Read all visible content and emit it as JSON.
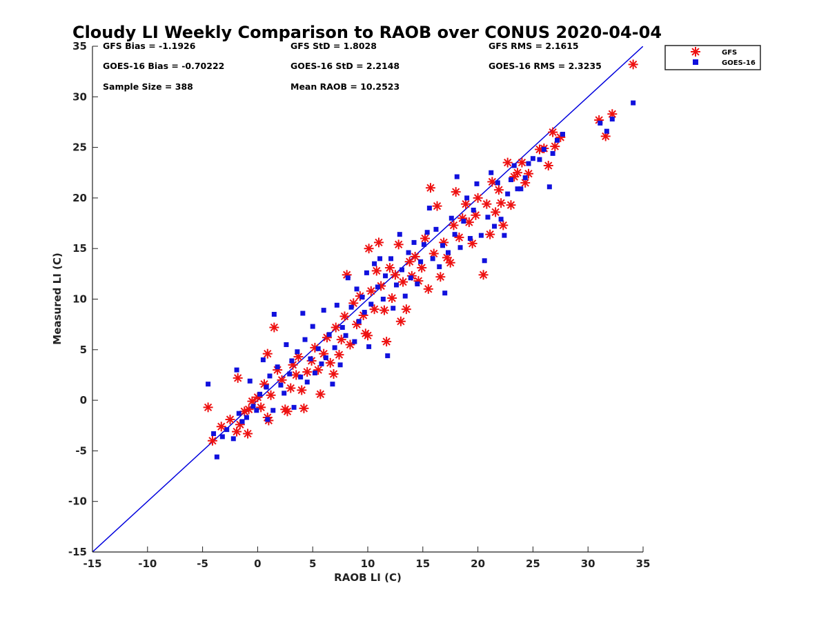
{
  "chart_data": {
    "type": "scatter",
    "title": "Cloudy LI Weekly Comparison to RAOB over CONUS 2020-04-04",
    "xlabel": "RAOB LI (C)",
    "ylabel": "Measured LI (C)",
    "xlim": [
      -15,
      35
    ],
    "ylim": [
      -15,
      35
    ],
    "xticks": [
      -15,
      -10,
      -5,
      0,
      5,
      10,
      15,
      20,
      25,
      30,
      35
    ],
    "yticks": [
      -15,
      -10,
      -5,
      0,
      5,
      10,
      15,
      20,
      25,
      30,
      35
    ],
    "xtick_labels": [
      "-15",
      "-10",
      "-5",
      "0",
      "5",
      "10",
      "15",
      "20",
      "25",
      "30",
      "35"
    ],
    "ytick_labels": [
      "-15",
      "-10",
      "-5",
      "0",
      "5",
      "10",
      "15",
      "20",
      "25",
      "30",
      "35"
    ],
    "grid": false,
    "legend_position": "outside-top-right",
    "reference_line": {
      "x": [
        -15,
        35
      ],
      "y": [
        -15,
        35
      ],
      "color": "#0000dd"
    },
    "annotations": [
      "GFS Bias = -1.1926",
      "GFS StD = 1.8028",
      "GFS RMS = 2.1615",
      "GOES-16 Bias = -0.70222",
      "GOES-16 StD = 2.2148",
      "GOES-16 RMS = 2.3235",
      "Sample Size = 388",
      "Mean RAOB = 10.2523"
    ],
    "series": [
      {
        "name": "GFS",
        "marker": "asterisk",
        "color": "#ee1111",
        "points": [
          [
            -4.5,
            -0.7
          ],
          [
            -4.1,
            -4.0
          ],
          [
            -3.3,
            -2.6
          ],
          [
            -2.5,
            -1.9
          ],
          [
            -1.9,
            -3.1
          ],
          [
            -1.8,
            2.2
          ],
          [
            -1.6,
            -2.4
          ],
          [
            -1.2,
            -1.1
          ],
          [
            -0.9,
            -3.3
          ],
          [
            -0.8,
            -0.9
          ],
          [
            -0.5,
            -0.1
          ],
          [
            0.0,
            0.3
          ],
          [
            0.3,
            -0.7
          ],
          [
            0.6,
            1.6
          ],
          [
            0.9,
            -1.7
          ],
          [
            0.9,
            4.6
          ],
          [
            1.0,
            -2.0
          ],
          [
            1.2,
            0.5
          ],
          [
            1.5,
            7.2
          ],
          [
            1.8,
            3.0
          ],
          [
            2.2,
            2.0
          ],
          [
            2.5,
            -0.9
          ],
          [
            2.7,
            -1.1
          ],
          [
            3.0,
            1.2
          ],
          [
            3.2,
            3.5
          ],
          [
            3.5,
            2.5
          ],
          [
            3.7,
            4.3
          ],
          [
            4.0,
            1.0
          ],
          [
            4.2,
            -0.8
          ],
          [
            4.5,
            2.8
          ],
          [
            4.9,
            3.9
          ],
          [
            5.2,
            5.2
          ],
          [
            5.5,
            3.0
          ],
          [
            5.7,
            0.6
          ],
          [
            6.0,
            4.6
          ],
          [
            6.3,
            6.2
          ],
          [
            6.6,
            3.7
          ],
          [
            6.9,
            2.6
          ],
          [
            7.1,
            7.2
          ],
          [
            7.4,
            4.5
          ],
          [
            7.6,
            6.0
          ],
          [
            7.9,
            8.3
          ],
          [
            8.1,
            12.4
          ],
          [
            8.4,
            5.5
          ],
          [
            8.7,
            9.6
          ],
          [
            9.0,
            7.5
          ],
          [
            9.3,
            10.3
          ],
          [
            9.6,
            8.4
          ],
          [
            9.8,
            6.6
          ],
          [
            10.0,
            6.4
          ],
          [
            10.1,
            15.0
          ],
          [
            10.3,
            10.8
          ],
          [
            10.6,
            9.0
          ],
          [
            10.8,
            12.8
          ],
          [
            11.0,
            15.6
          ],
          [
            11.2,
            11.3
          ],
          [
            11.5,
            8.9
          ],
          [
            11.7,
            5.8
          ],
          [
            12.0,
            13.1
          ],
          [
            12.2,
            10.1
          ],
          [
            12.5,
            12.4
          ],
          [
            12.8,
            15.4
          ],
          [
            13.0,
            7.8
          ],
          [
            13.2,
            11.7
          ],
          [
            13.5,
            9.0
          ],
          [
            13.8,
            13.7
          ],
          [
            14.0,
            12.3
          ],
          [
            14.3,
            14.2
          ],
          [
            14.6,
            11.8
          ],
          [
            14.9,
            13.1
          ],
          [
            15.2,
            16.0
          ],
          [
            15.5,
            11.0
          ],
          [
            15.7,
            21.0
          ],
          [
            16.0,
            14.5
          ],
          [
            16.3,
            19.2
          ],
          [
            16.6,
            12.2
          ],
          [
            16.9,
            15.6
          ],
          [
            17.2,
            14.1
          ],
          [
            17.5,
            13.6
          ],
          [
            17.8,
            17.3
          ],
          [
            18.0,
            20.6
          ],
          [
            18.3,
            16.1
          ],
          [
            18.6,
            18.0
          ],
          [
            18.9,
            19.4
          ],
          [
            19.2,
            17.6
          ],
          [
            19.5,
            15.5
          ],
          [
            19.8,
            18.3
          ],
          [
            20.0,
            20.0
          ],
          [
            20.5,
            12.4
          ],
          [
            20.8,
            19.4
          ],
          [
            21.1,
            16.4
          ],
          [
            21.3,
            21.6
          ],
          [
            21.6,
            18.6
          ],
          [
            21.9,
            20.8
          ],
          [
            22.1,
            19.5
          ],
          [
            22.3,
            17.3
          ],
          [
            22.7,
            23.5
          ],
          [
            23.0,
            19.3
          ],
          [
            23.3,
            22.1
          ],
          [
            23.6,
            22.5
          ],
          [
            24.0,
            23.5
          ],
          [
            24.3,
            21.5
          ],
          [
            24.6,
            22.4
          ],
          [
            25.6,
            24.8
          ],
          [
            26.0,
            24.9
          ],
          [
            26.4,
            23.2
          ],
          [
            26.8,
            26.5
          ],
          [
            27.0,
            25.1
          ],
          [
            27.5,
            26.0
          ],
          [
            31.0,
            27.7
          ],
          [
            31.6,
            26.1
          ],
          [
            32.2,
            28.3
          ],
          [
            34.1,
            33.2
          ]
        ]
      },
      {
        "name": "GOES-16",
        "marker": "square",
        "color": "#1111dd",
        "points": [
          [
            -4.5,
            1.6
          ],
          [
            -4.0,
            -3.3
          ],
          [
            -3.7,
            -5.6
          ],
          [
            -3.2,
            -3.6
          ],
          [
            -2.8,
            -2.9
          ],
          [
            -2.2,
            -3.8
          ],
          [
            -1.9,
            3.0
          ],
          [
            -1.7,
            -1.3
          ],
          [
            -1.4,
            -2.1
          ],
          [
            -1.0,
            -1.7
          ],
          [
            -0.7,
            1.9
          ],
          [
            -0.4,
            -0.6
          ],
          [
            -0.1,
            -1.0
          ],
          [
            0.2,
            0.6
          ],
          [
            0.5,
            4.0
          ],
          [
            0.8,
            1.3
          ],
          [
            0.9,
            -1.9
          ],
          [
            1.1,
            2.4
          ],
          [
            1.4,
            -1.0
          ],
          [
            1.5,
            8.5
          ],
          [
            1.8,
            3.3
          ],
          [
            2.1,
            1.5
          ],
          [
            2.4,
            0.7
          ],
          [
            2.6,
            5.5
          ],
          [
            2.9,
            2.6
          ],
          [
            3.1,
            3.9
          ],
          [
            3.3,
            -0.7
          ],
          [
            3.6,
            4.8
          ],
          [
            3.9,
            2.3
          ],
          [
            4.1,
            8.6
          ],
          [
            4.3,
            6.0
          ],
          [
            4.5,
            1.8
          ],
          [
            4.8,
            4.1
          ],
          [
            5.0,
            7.3
          ],
          [
            5.2,
            2.7
          ],
          [
            5.5,
            5.1
          ],
          [
            5.8,
            3.6
          ],
          [
            6.0,
            8.9
          ],
          [
            6.2,
            4.2
          ],
          [
            6.5,
            6.5
          ],
          [
            6.8,
            1.6
          ],
          [
            7.0,
            5.2
          ],
          [
            7.2,
            9.4
          ],
          [
            7.5,
            3.5
          ],
          [
            7.7,
            7.2
          ],
          [
            8.0,
            6.4
          ],
          [
            8.2,
            12.1
          ],
          [
            8.5,
            9.2
          ],
          [
            8.8,
            5.8
          ],
          [
            9.0,
            11.0
          ],
          [
            9.2,
            7.8
          ],
          [
            9.5,
            10.2
          ],
          [
            9.7,
            8.7
          ],
          [
            9.9,
            12.6
          ],
          [
            10.1,
            5.3
          ],
          [
            10.3,
            9.5
          ],
          [
            10.6,
            13.5
          ],
          [
            10.9,
            11.2
          ],
          [
            11.1,
            14.0
          ],
          [
            11.4,
            10.0
          ],
          [
            11.6,
            12.3
          ],
          [
            11.8,
            4.4
          ],
          [
            12.1,
            14.0
          ],
          [
            12.3,
            9.1
          ],
          [
            12.6,
            11.4
          ],
          [
            12.9,
            16.4
          ],
          [
            13.1,
            12.9
          ],
          [
            13.4,
            10.3
          ],
          [
            13.7,
            14.6
          ],
          [
            13.9,
            12.1
          ],
          [
            14.2,
            15.6
          ],
          [
            14.5,
            11.5
          ],
          [
            14.8,
            13.7
          ],
          [
            15.1,
            15.4
          ],
          [
            15.4,
            16.6
          ],
          [
            15.6,
            19.0
          ],
          [
            15.9,
            14.0
          ],
          [
            16.2,
            16.9
          ],
          [
            16.5,
            13.2
          ],
          [
            16.8,
            15.3
          ],
          [
            17.0,
            10.6
          ],
          [
            17.3,
            14.6
          ],
          [
            17.6,
            18.0
          ],
          [
            17.9,
            16.4
          ],
          [
            18.1,
            22.1
          ],
          [
            18.4,
            15.1
          ],
          [
            18.7,
            17.7
          ],
          [
            19.0,
            20.0
          ],
          [
            19.3,
            16.0
          ],
          [
            19.6,
            18.8
          ],
          [
            19.9,
            21.4
          ],
          [
            20.3,
            16.3
          ],
          [
            20.6,
            13.8
          ],
          [
            20.9,
            18.1
          ],
          [
            21.2,
            22.5
          ],
          [
            21.5,
            17.2
          ],
          [
            21.8,
            21.5
          ],
          [
            22.1,
            17.9
          ],
          [
            22.4,
            16.3
          ],
          [
            22.7,
            20.4
          ],
          [
            23.0,
            21.8
          ],
          [
            23.3,
            23.2
          ],
          [
            23.6,
            20.9
          ],
          [
            23.9,
            20.9
          ],
          [
            24.3,
            22.0
          ],
          [
            24.6,
            23.4
          ],
          [
            25.0,
            23.9
          ],
          [
            25.6,
            23.8
          ],
          [
            26.0,
            24.8
          ],
          [
            26.5,
            21.1
          ],
          [
            26.8,
            24.4
          ],
          [
            27.2,
            25.7
          ],
          [
            27.7,
            26.3
          ],
          [
            31.1,
            27.4
          ],
          [
            31.7,
            26.6
          ],
          [
            32.2,
            27.8
          ],
          [
            34.1,
            29.4
          ]
        ]
      }
    ]
  }
}
